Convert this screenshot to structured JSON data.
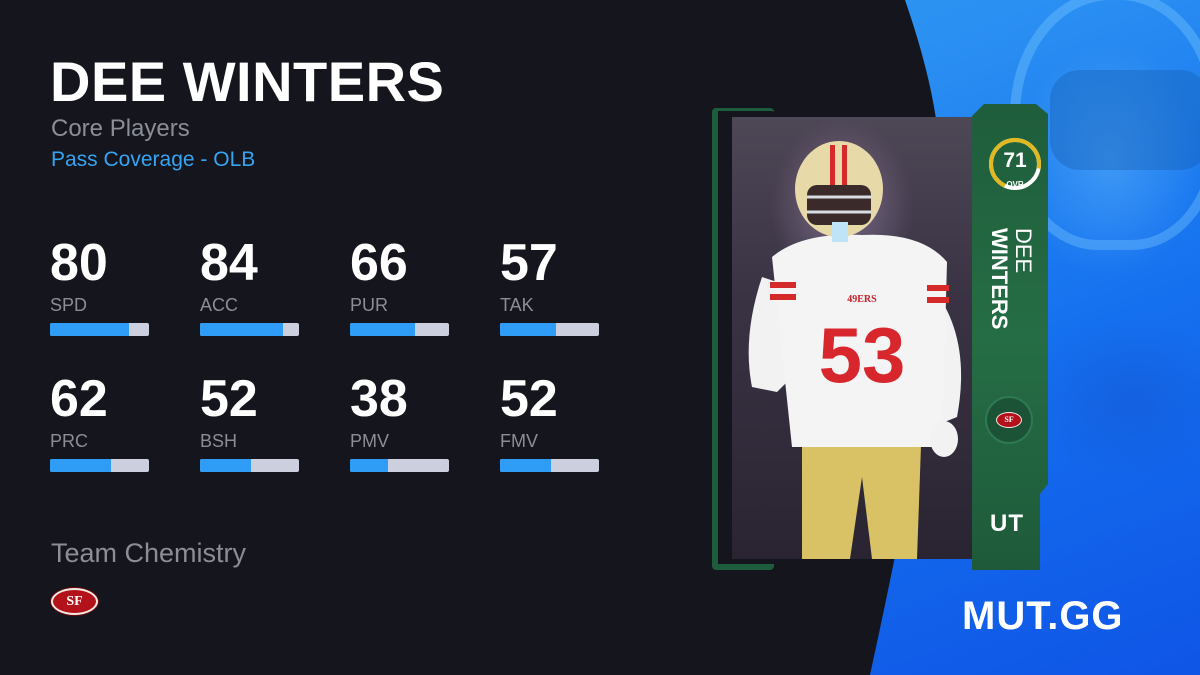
{
  "player": {
    "name": "DEE WINTERS",
    "program": "Core Players",
    "archetype": "Pass Coverage - OLB"
  },
  "stats": [
    {
      "label": "SPD",
      "value": "80",
      "pct": 80
    },
    {
      "label": "ACC",
      "value": "84",
      "pct": 84
    },
    {
      "label": "PUR",
      "value": "66",
      "pct": 66
    },
    {
      "label": "TAK",
      "value": "57",
      "pct": 57
    },
    {
      "label": "PRC",
      "value": "62",
      "pct": 62
    },
    {
      "label": "BSH",
      "value": "52",
      "pct": 52
    },
    {
      "label": "PMV",
      "value": "38",
      "pct": 38
    },
    {
      "label": "FMV",
      "value": "52",
      "pct": 52
    }
  ],
  "team_chemistry": {
    "label": "Team Chemistry",
    "team_logo": "SF",
    "team_icon": "49ers-logo-icon"
  },
  "card": {
    "ovr": "71",
    "ovr_label": "OVR",
    "first_name": "DEE",
    "last_name": "WINTERS",
    "type": "UT",
    "team_badge": "SF",
    "jersey_number": "53",
    "jersey_wordmark": "49ERS"
  },
  "brand": "MUT.GG",
  "colors": {
    "background": "#14151d",
    "accent_blue": "#2f9df5",
    "archetype_text": "#37a4f2",
    "muted_text": "#8c8e97",
    "bar_track": "#ccd0de",
    "card_green": "#256d45",
    "ovr_ring": "#e0b920",
    "team_red": "#b3121b"
  }
}
